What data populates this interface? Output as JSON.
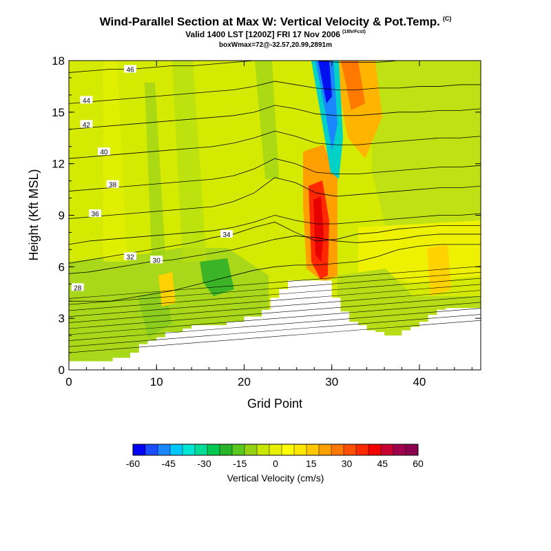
{
  "header": {
    "title": "Wind-Parallel Section at Max W: Vertical Velocity & Pot.Temp.",
    "title_corner": "(C)",
    "subtitle": "Valid 1400 LST [1200Z] FRI 17 Nov 2006",
    "subtitle_tag": "(18hrFcst)",
    "subtitle2": "boxWmax=72@-32.57,20.99,2891m"
  },
  "chart_data": {
    "type": "heatmap",
    "xlabel": "Grid Point",
    "ylabel": "Height (Kft MSL)",
    "xlim": [
      0,
      47
    ],
    "ylim": [
      0,
      18
    ],
    "x_ticks": [
      "0",
      "10",
      "20",
      "30",
      "40"
    ],
    "y_ticks": [
      "0",
      "3",
      "6",
      "9",
      "12",
      "15",
      "18"
    ],
    "x_tick_values": [
      0,
      10,
      20,
      30,
      40
    ],
    "y_tick_values": [
      0,
      3,
      6,
      9,
      12,
      15,
      18
    ],
    "grid": false,
    "terrain": [
      [
        0,
        0.5
      ],
      [
        2,
        0.5
      ],
      [
        3,
        0.5
      ],
      [
        4,
        0.5
      ],
      [
        5,
        0.7
      ],
      [
        7,
        1.0
      ],
      [
        8,
        1.5
      ],
      [
        9,
        1.7
      ],
      [
        10,
        1.9
      ],
      [
        11,
        2.2
      ],
      [
        12,
        2.2
      ],
      [
        13,
        2.4
      ],
      [
        14,
        2.6
      ],
      [
        15,
        2.6
      ],
      [
        16,
        2.6
      ],
      [
        17,
        2.6
      ],
      [
        18,
        2.8
      ],
      [
        19,
        2.8
      ],
      [
        20,
        3.1
      ],
      [
        21,
        3.1
      ],
      [
        22,
        3.5
      ],
      [
        23,
        4.2
      ],
      [
        24,
        4.7
      ],
      [
        25,
        5.2
      ],
      [
        26,
        5.2
      ],
      [
        27,
        5.2
      ],
      [
        28,
        5.2
      ],
      [
        29,
        5.2
      ],
      [
        30,
        4.2
      ],
      [
        31,
        3.4
      ],
      [
        32,
        2.8
      ],
      [
        33,
        2.6
      ],
      [
        34,
        2.3
      ],
      [
        35,
        2.2
      ],
      [
        36,
        2.0
      ],
      [
        37,
        2.0
      ],
      [
        38,
        2.3
      ],
      [
        39,
        2.5
      ],
      [
        40,
        2.8
      ],
      [
        41,
        3.2
      ],
      [
        42,
        3.5
      ],
      [
        43,
        3.6
      ],
      [
        44,
        3.6
      ],
      [
        45,
        3.6
      ],
      [
        46,
        3.6
      ],
      [
        47,
        3.6
      ]
    ],
    "contours": [
      {
        "level": 28,
        "label": "28",
        "label_at": [
          1,
          4.8
        ],
        "y": [
          4.0,
          4.0,
          4.0,
          4.2,
          4.4,
          4.6,
          4.9,
          5.2,
          5.5,
          5.8,
          6.0,
          6.1,
          6.1,
          6.2,
          6.3,
          6.6,
          7.0,
          7.2,
          7.3,
          7.3,
          7.3
        ]
      },
      {
        "level": 30,
        "label": "30",
        "label_at": [
          10,
          6.4
        ],
        "y": [
          5.6,
          5.7,
          5.9,
          6.1,
          6.3,
          6.4,
          6.6,
          6.8,
          7.0,
          7.3,
          7.6,
          7.8,
          7.7,
          7.5,
          7.4,
          7.5,
          7.6,
          7.8,
          7.9,
          7.9,
          7.9
        ]
      },
      {
        "level": 32,
        "label": "32",
        "label_at": [
          7,
          6.6
        ],
        "y": [
          6.2,
          6.4,
          6.6,
          6.8,
          7.0,
          7.2,
          7.4,
          7.7,
          7.9,
          8.3,
          8.6,
          8.0,
          7.5,
          7.6,
          7.9,
          8.0,
          8.2,
          8.3,
          8.4,
          8.4,
          8.4
        ]
      },
      {
        "level": 34,
        "label": "34",
        "label_at": [
          18,
          7.9
        ],
        "y": [
          7.3,
          7.5,
          7.6,
          7.7,
          7.8,
          7.9,
          8.0,
          8.1,
          8.3,
          8.6,
          9.0,
          8.7,
          8.5,
          8.5,
          8.6,
          8.7,
          8.8,
          8.9,
          9.0,
          9.0,
          9.1
        ]
      },
      {
        "level": 36,
        "label": "36",
        "label_at": [
          3,
          9.1
        ],
        "y": [
          8.8,
          8.9,
          9.0,
          9.1,
          9.2,
          9.3,
          9.4,
          9.5,
          9.8,
          10.3,
          11.2,
          10.9,
          10.3,
          10.1,
          10.2,
          10.3,
          10.4,
          10.5,
          10.6,
          10.6,
          10.7
        ]
      },
      {
        "level": 38,
        "label": "38",
        "label_at": [
          5,
          10.8
        ],
        "y": [
          10.4,
          10.5,
          10.6,
          10.7,
          10.8,
          10.9,
          11.0,
          11.1,
          11.3,
          11.7,
          12.3,
          12.0,
          11.5,
          11.4,
          11.4,
          11.5,
          11.6,
          11.7,
          11.8,
          11.8,
          11.9
        ]
      },
      {
        "level": 40,
        "label": "40",
        "label_at": [
          4,
          12.7
        ],
        "y": [
          12.3,
          12.4,
          12.5,
          12.6,
          12.7,
          12.8,
          12.9,
          13.0,
          13.2,
          13.5,
          13.9,
          13.6,
          13.2,
          13.1,
          13.1,
          13.2,
          13.3,
          13.4,
          13.5,
          13.5,
          13.6
        ]
      },
      {
        "level": 42,
        "label": "42",
        "label_at": [
          2,
          14.3
        ],
        "y": [
          14.0,
          14.1,
          14.2,
          14.3,
          14.4,
          14.5,
          14.6,
          14.7,
          14.8,
          15.0,
          15.4,
          15.2,
          14.9,
          14.8,
          14.8,
          14.9,
          15.0,
          15.0,
          15.1,
          15.1,
          15.2
        ]
      },
      {
        "level": 44,
        "label": "44",
        "label_at": [
          2,
          15.7
        ],
        "y": [
          15.5,
          15.6,
          15.7,
          15.8,
          15.9,
          16.0,
          16.1,
          16.2,
          16.3,
          16.5,
          16.8,
          16.6,
          16.4,
          16.3,
          16.3,
          16.4,
          16.4,
          16.5,
          16.5,
          16.6,
          16.6
        ]
      },
      {
        "level": 46,
        "label": "46",
        "label_at": [
          7,
          17.5
        ],
        "y": [
          17.3,
          17.4,
          17.5,
          17.5,
          17.6,
          17.7,
          17.7,
          17.8,
          17.9,
          18.0,
          18.2,
          18.1,
          18.0,
          17.9,
          17.9,
          17.9,
          18.0,
          18.0,
          18.0,
          18.0,
          18.0
        ]
      }
    ],
    "colorbar": {
      "title": "Vertical Velocity (cm/s)",
      "tick_labels": [
        "-60",
        "-45",
        "-30",
        "-15",
        "0",
        "15",
        "30",
        "45",
        "60"
      ],
      "colors": [
        "#0000f5",
        "#1a4dff",
        "#1a86ff",
        "#00c8ff",
        "#00e6d2",
        "#00dc96",
        "#00c850",
        "#28b428",
        "#5ac81e",
        "#96d214",
        "#c8e600",
        "#e6f000",
        "#ffff00",
        "#ffe600",
        "#ffc800",
        "#ffa000",
        "#ff7800",
        "#ff5000",
        "#ff2800",
        "#f50000",
        "#c80032",
        "#a0004b",
        "#8c0050"
      ]
    }
  }
}
